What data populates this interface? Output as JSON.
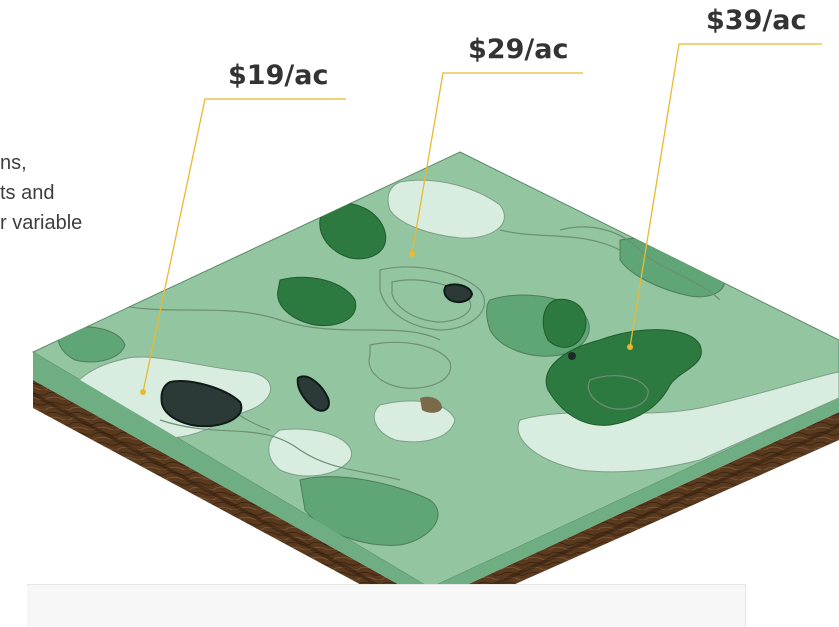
{
  "description_lines": [
    "ns,",
    "ts and",
    "r variable"
  ],
  "price_labels": [
    {
      "id": "low",
      "text": "$19/ac"
    },
    {
      "id": "mid",
      "text": "$29/ac"
    },
    {
      "id": "high",
      "text": "$39/ac"
    }
  ],
  "colors": {
    "accent_line": "#e8b931",
    "zone_light": "#d8ecdf",
    "zone_mid": "#93c6a0",
    "zone_green": "#5fa575",
    "zone_dark": "#2c7a3f",
    "soil": "#5a3a1e"
  }
}
